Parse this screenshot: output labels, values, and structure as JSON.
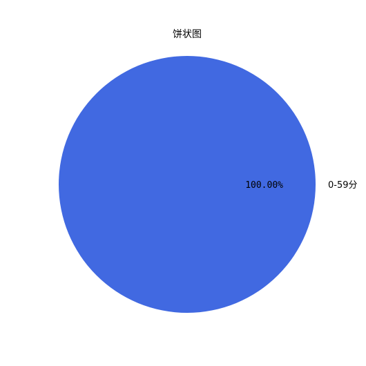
{
  "chart_data": {
    "type": "pie",
    "title": "饼状图",
    "slices": [
      {
        "label": "0-59分",
        "value": 100,
        "percent_label": "100.00%",
        "color": "#4169E1"
      }
    ],
    "legend": "none"
  }
}
